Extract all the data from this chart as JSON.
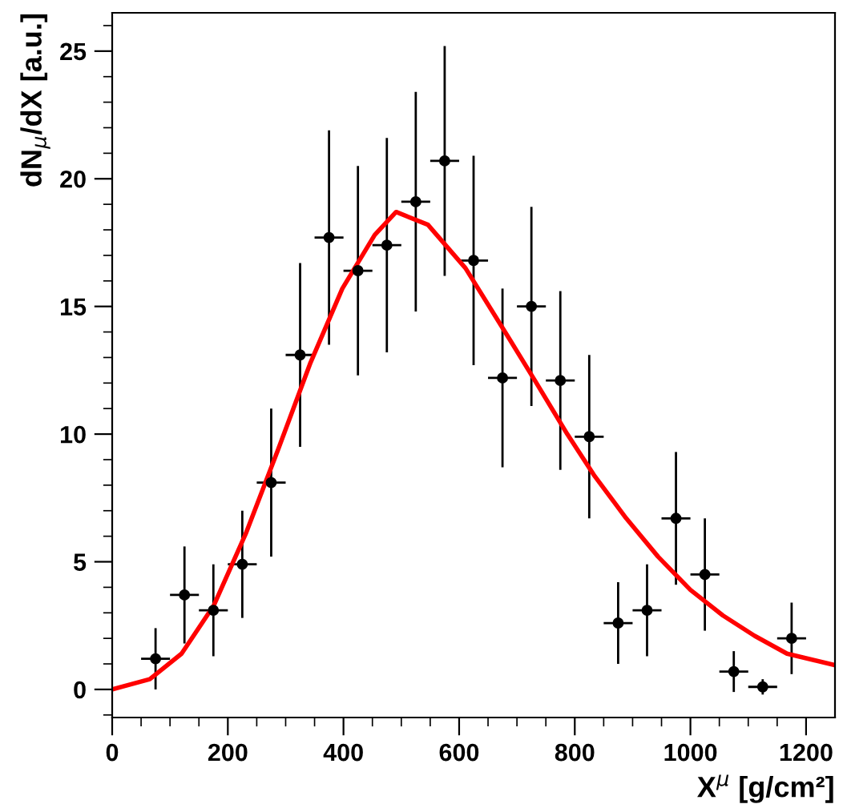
{
  "chart_data": {
    "type": "scatter",
    "xlabel": "X$^{μ}$ [g/cm²]",
    "ylabel": "dN$_{μ}$/dX [a.u.]",
    "xlim": [
      0,
      1250
    ],
    "ylim": [
      -1.1,
      26.5
    ],
    "xticks": [
      0,
      {
        "value": 50,
        "label": null
      },
      {
        "value": 100,
        "label": null
      },
      {
        "value": 150,
        "label": null
      },
      200,
      {
        "value": 250,
        "label": null
      },
      {
        "value": 300,
        "label": null
      },
      {
        "value": 350,
        "label": null
      },
      400,
      {
        "value": 450,
        "label": null
      },
      {
        "value": 500,
        "label": null
      },
      {
        "value": 550,
        "label": null
      },
      600,
      {
        "value": 650,
        "label": null
      },
      {
        "value": 700,
        "label": null
      },
      {
        "value": 750,
        "label": null
      },
      800,
      {
        "value": 850,
        "label": null
      },
      {
        "value": 900,
        "label": null
      },
      {
        "value": 950,
        "label": null
      },
      1000,
      {
        "value": 1050,
        "label": null
      },
      {
        "value": 1100,
        "label": null
      },
      {
        "value": 1150,
        "label": null
      },
      1200
    ],
    "yticks": [
      {
        "value": -1,
        "label": null
      },
      0,
      {
        "value": 1,
        "label": null
      },
      {
        "value": 2,
        "label": null
      },
      {
        "value": 3,
        "label": null
      },
      {
        "value": 4,
        "label": null
      },
      5,
      {
        "value": 6,
        "label": null
      },
      {
        "value": 7,
        "label": null
      },
      {
        "value": 8,
        "label": null
      },
      {
        "value": 9,
        "label": null
      },
      10,
      {
        "value": 11,
        "label": null
      },
      {
        "value": 12,
        "label": null
      },
      {
        "value": 13,
        "label": null
      },
      {
        "value": 14,
        "label": null
      },
      15,
      {
        "value": 16,
        "label": null
      },
      {
        "value": 17,
        "label": null
      },
      {
        "value": 18,
        "label": null
      },
      {
        "value": 19,
        "label": null
      },
      20,
      {
        "value": 21,
        "label": null
      },
      {
        "value": 22,
        "label": null
      },
      {
        "value": 23,
        "label": null
      },
      {
        "value": 24,
        "label": null
      },
      25,
      {
        "value": 26,
        "label": null
      }
    ],
    "grid": false,
    "legend": false,
    "series": [
      {
        "color": "#000000",
        "marker": "circle",
        "x": [
          75,
          125,
          175,
          225,
          275,
          325,
          375,
          425,
          475,
          525,
          575,
          625,
          675,
          725,
          775,
          825,
          875,
          925,
          975,
          1025,
          1075,
          1125,
          1175
        ],
        "values": [
          1.2,
          3.7,
          3.1,
          4.9,
          8.1,
          13.1,
          17.7,
          16.4,
          17.4,
          19.1,
          20.7,
          16.8,
          12.2,
          15.0,
          12.1,
          9.9,
          2.6,
          3.1,
          6.7,
          4.5,
          0.7,
          0.1,
          2.0
        ],
        "errors": [
          1.2,
          1.9,
          1.8,
          2.1,
          2.9,
          3.6,
          4.2,
          4.1,
          4.2,
          4.3,
          4.5,
          4.1,
          3.5,
          3.9,
          3.5,
          3.2,
          1.6,
          1.8,
          2.6,
          2.2,
          0.8,
          0.3,
          1.4
        ],
        "xerrors": [
          25,
          25,
          25,
          25,
          25,
          25,
          25,
          25,
          25,
          25,
          25,
          25,
          25,
          25,
          25,
          25,
          25,
          25,
          25,
          25,
          25,
          25,
          25
        ]
      },
      {
        "type": "line",
        "color": "#ff0000",
        "marker": "none",
        "line_style": "solid",
        "x": [
          0,
          65,
          120,
          176,
          231,
          287,
          343,
          398,
          454,
          491,
          546,
          611,
          685,
          731,
          787,
          833,
          889,
          944,
          1000,
          1056,
          1111,
          1167,
          1250
        ],
        "values": [
          0,
          0.4,
          1.4,
          3.3,
          6.1,
          9.4,
          12.8,
          15.7,
          17.8,
          18.7,
          18.2,
          16.5,
          13.8,
          12.1,
          10.0,
          8.4,
          6.7,
          5.2,
          3.9,
          2.9,
          2.1,
          1.4,
          0.95
        ]
      }
    ]
  }
}
